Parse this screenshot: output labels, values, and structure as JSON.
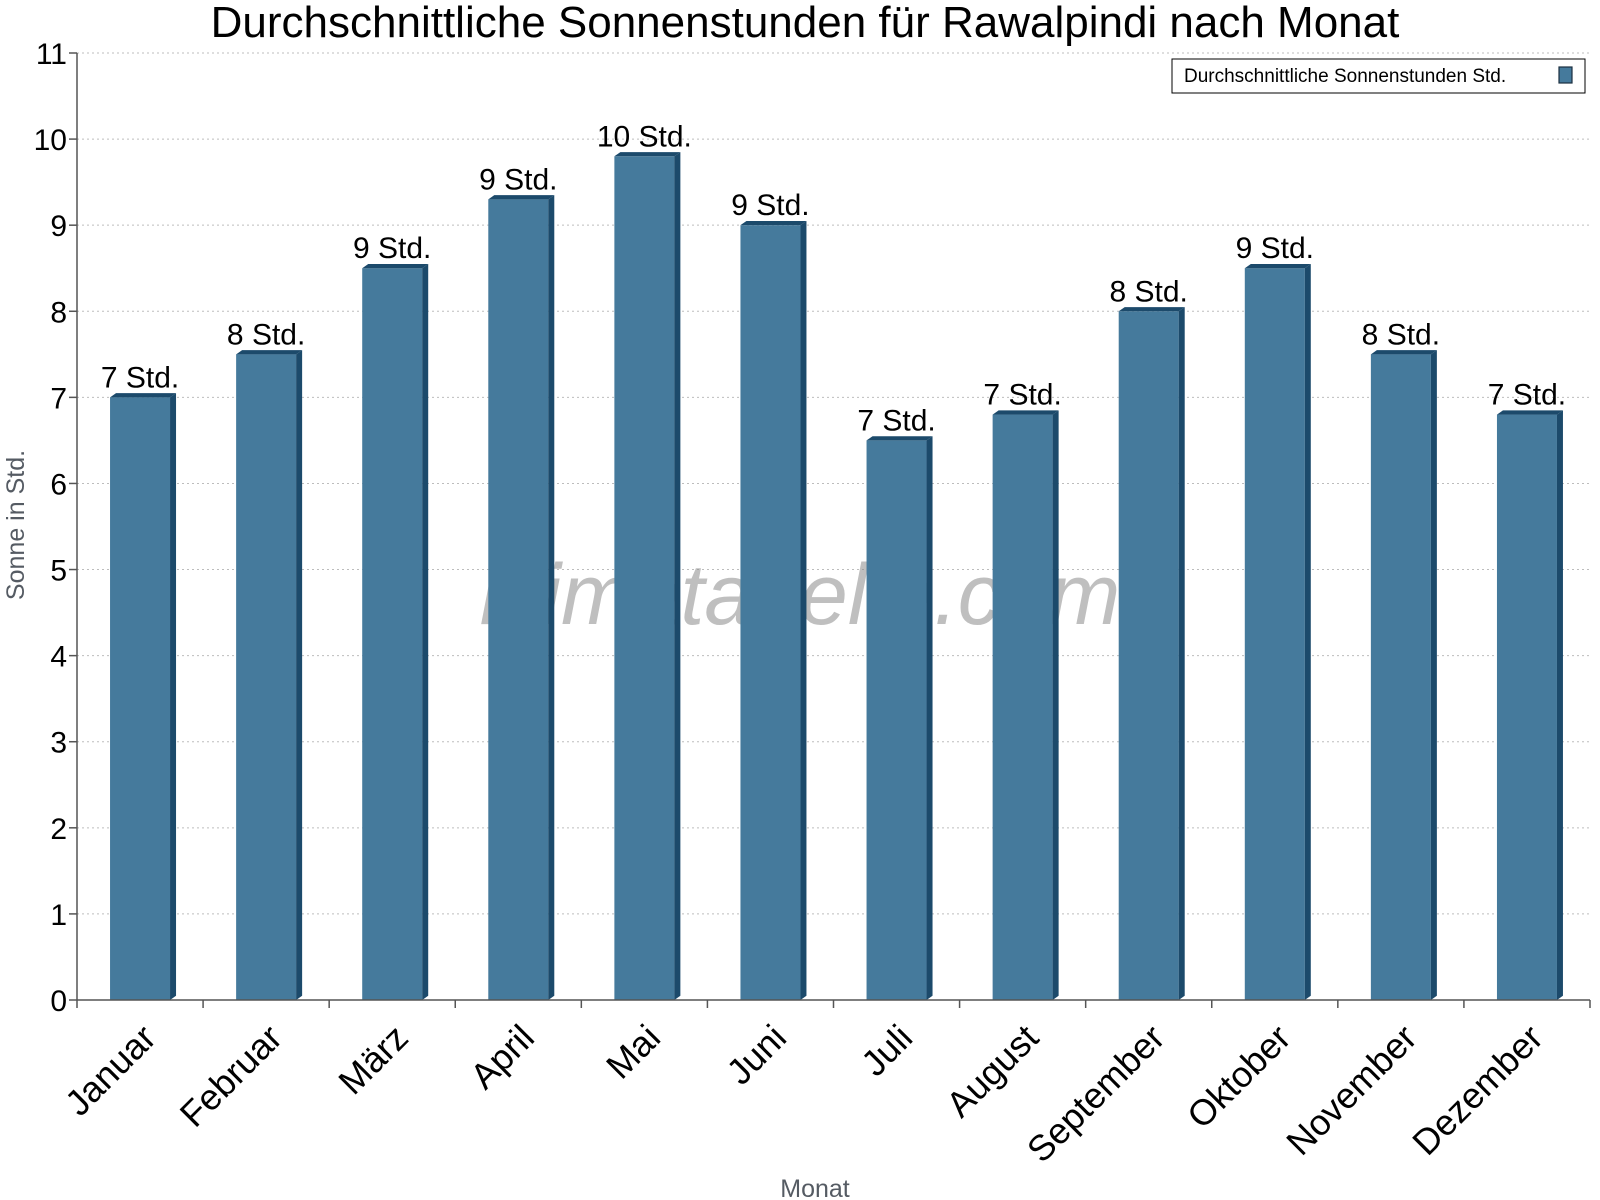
{
  "chart_data": {
    "type": "bar",
    "title": "Durchschnittliche Sonnenstunden für Rawalpindi nach Monat",
    "xlabel": "Monat",
    "ylabel": "Sonne in Std.",
    "ylim": [
      0,
      11
    ],
    "yticks": [
      "0",
      "1",
      "2",
      "3",
      "4",
      "5",
      "6",
      "7",
      "8",
      "9",
      "10",
      "11"
    ],
    "grid": true,
    "legend_position": "top-right",
    "watermark": "klimatabelle.com",
    "categories": [
      "Januar",
      "Februar",
      "März",
      "April",
      "Mai",
      "Juni",
      "Juli",
      "August",
      "September",
      "Oktober",
      "November",
      "Dezember"
    ],
    "series": [
      {
        "name": "Durchschnittliche Sonnenstunden Std.",
        "values": [
          7.0,
          7.5,
          8.5,
          9.3,
          9.8,
          9.0,
          6.5,
          6.8,
          8.0,
          8.5,
          7.5,
          6.8
        ],
        "labels": [
          "7 Std.",
          "8 Std.",
          "9 Std.",
          "9 Std.",
          "10 Std.",
          "9 Std.",
          "7 Std.",
          "7 Std.",
          "8 Std.",
          "9 Std.",
          "8 Std.",
          "7 Std."
        ],
        "color": "#457a9c",
        "side_color": "#1c4a6b"
      }
    ]
  }
}
